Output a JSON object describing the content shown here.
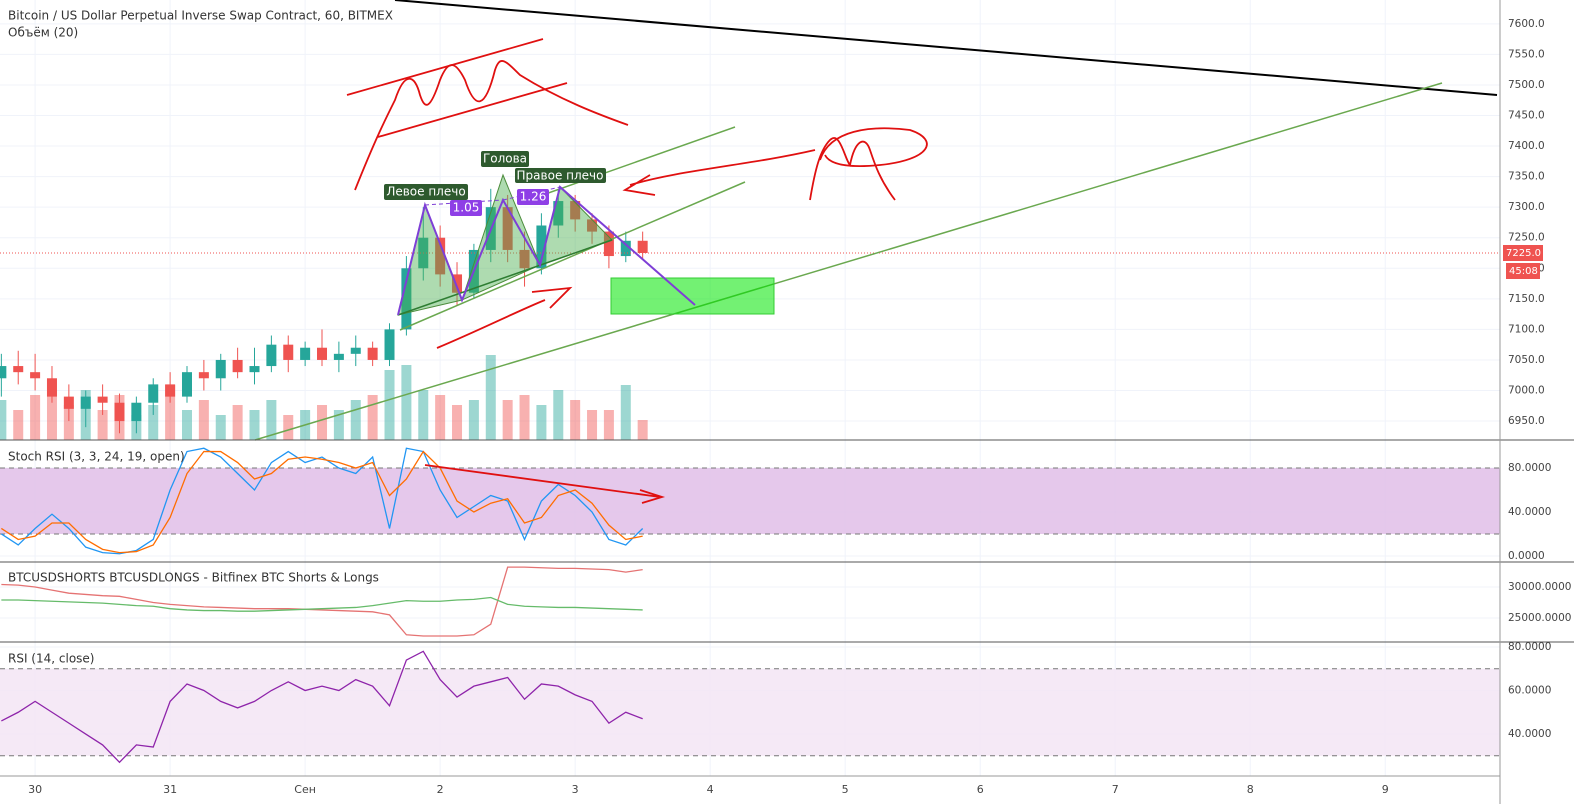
{
  "chart_data": [
    {
      "type": "candlestick",
      "title": "Bitcoin / US Dollar Perpetual Inverse Swap Contract, 60, BITMEX",
      "volume_title": "Объём (20)",
      "x": [
        -0.25,
        -0.125,
        0,
        0.125,
        0.25,
        0.375,
        0.5,
        0.625,
        0.75,
        0.875,
        1,
        1.125,
        1.25,
        1.375,
        1.5,
        1.625,
        1.75,
        1.875,
        2,
        2.125,
        2.25,
        2.375,
        2.5,
        2.625,
        2.75,
        2.875,
        3,
        3.125,
        3.25,
        3.375,
        3.5,
        3.625,
        3.75,
        3.875,
        4,
        4.125,
        4.25,
        4.375,
        4.5
      ],
      "open": [
        7020,
        7040,
        7030,
        7020,
        6990,
        6970,
        6990,
        6980,
        6950,
        6980,
        7010,
        6990,
        7030,
        7020,
        7050,
        7030,
        7040,
        7075,
        7050,
        7070,
        7050,
        7060,
        7070,
        7050,
        7100,
        7200,
        7250,
        7190,
        7160,
        7230,
        7300,
        7230,
        7200,
        7270,
        7310,
        7280,
        7260,
        7220,
        7245
      ],
      "high": [
        7060,
        7065,
        7060,
        7040,
        7010,
        7000,
        7010,
        6995,
        6990,
        7020,
        7030,
        7040,
        7050,
        7060,
        7070,
        7070,
        7090,
        7090,
        7080,
        7100,
        7080,
        7090,
        7080,
        7110,
        7220,
        7300,
        7270,
        7210,
        7240,
        7330,
        7320,
        7260,
        7290,
        7330,
        7320,
        7290,
        7270,
        7260,
        7260
      ],
      "low": [
        6990,
        7010,
        7000,
        6980,
        6950,
        6940,
        6960,
        6930,
        6930,
        6960,
        6980,
        6980,
        7000,
        7000,
        7020,
        7010,
        7030,
        7030,
        7040,
        7040,
        7030,
        7040,
        7040,
        7040,
        7090,
        7180,
        7170,
        7140,
        7150,
        7210,
        7210,
        7170,
        7190,
        7250,
        7260,
        7240,
        7200,
        7210,
        7215
      ],
      "close": [
        7040,
        7030,
        7020,
        6990,
        6970,
        6990,
        6980,
        6950,
        6980,
        7010,
        6990,
        7030,
        7020,
        7050,
        7030,
        7040,
        7075,
        7050,
        7070,
        7050,
        7060,
        7070,
        7050,
        7100,
        7200,
        7250,
        7190,
        7160,
        7230,
        7300,
        7230,
        7200,
        7270,
        7310,
        7280,
        7260,
        7220,
        7245,
        7225
      ],
      "volume": [
        40,
        30,
        45,
        60,
        35,
        50,
        30,
        45,
        25,
        35,
        55,
        30,
        40,
        25,
        35,
        30,
        40,
        25,
        30,
        35,
        30,
        40,
        45,
        70,
        75,
        50,
        45,
        35,
        40,
        85,
        40,
        45,
        35,
        50,
        40,
        30,
        30,
        55,
        20
      ],
      "up_color": "#26a69a",
      "down_color": "#ef5350",
      "xlim": [
        -0.26,
        10.85
      ],
      "xticks": [
        {
          "value": 0,
          "label": "30"
        },
        {
          "value": 1,
          "label": "31"
        },
        {
          "value": 2,
          "label": "Сен"
        },
        {
          "value": 3,
          "label": "2"
        },
        {
          "value": 4,
          "label": "3"
        },
        {
          "value": 5,
          "label": "4"
        },
        {
          "value": 6,
          "label": "5"
        },
        {
          "value": 7,
          "label": "6"
        },
        {
          "value": 8,
          "label": "7"
        },
        {
          "value": 9,
          "label": "8"
        },
        {
          "value": 10,
          "label": "9"
        }
      ],
      "ylim": [
        6919,
        7639
      ],
      "yticks": [
        {
          "value": 6950,
          "label": "6950.0"
        },
        {
          "value": 7000,
          "label": "7000.0"
        },
        {
          "value": 7050,
          "label": "7050.0"
        },
        {
          "value": 7100,
          "label": "7100.0"
        },
        {
          "value": 7150,
          "label": "7150.0"
        },
        {
          "value": 7200,
          "label": "7200.0"
        },
        {
          "value": 7250,
          "label": "7250.0"
        },
        {
          "value": 7300,
          "label": "7300.0"
        },
        {
          "value": 7350,
          "label": "7350.0"
        },
        {
          "value": 7400,
          "label": "7400.0"
        },
        {
          "value": 7450,
          "label": "7450.0"
        },
        {
          "value": 7500,
          "label": "7500.0"
        },
        {
          "value": 7550,
          "label": "7550.0"
        },
        {
          "value": 7600,
          "label": "7600.0"
        }
      ],
      "grid": true,
      "last_price": 7225,
      "last_price_label": "7225.0",
      "countdown": "45:08",
      "annotations": [
        "Левое плечо",
        "Голова",
        "Правое плечо",
        "1.05",
        "1.26"
      ]
    },
    {
      "type": "line",
      "title": "Stoch RSI (3, 3, 24, 19, open)",
      "series": [
        {
          "color": "#2196f3",
          "values": [
            20,
            10,
            25,
            38,
            25,
            8,
            3,
            2,
            5,
            15,
            60,
            95,
            98,
            90,
            75,
            60,
            85,
            95,
            85,
            90,
            80,
            75,
            90,
            25,
            98,
            95,
            60,
            35,
            45,
            55,
            50,
            15,
            50,
            65,
            55,
            40,
            15,
            10,
            25
          ]
        },
        {
          "color": "#ff6d00",
          "values": [
            25,
            15,
            18,
            30,
            30,
            15,
            6,
            3,
            4,
            10,
            35,
            75,
            95,
            95,
            85,
            70,
            75,
            88,
            90,
            88,
            85,
            80,
            85,
            55,
            70,
            95,
            80,
            50,
            40,
            48,
            52,
            30,
            35,
            55,
            60,
            48,
            28,
            15,
            18
          ]
        }
      ],
      "ylim": [
        -5.5,
        105.5
      ],
      "yticks": [
        {
          "value": 0,
          "label": "0.0000"
        },
        {
          "value": 40,
          "label": "40.0000"
        },
        {
          "value": 80,
          "label": "80.0000"
        }
      ],
      "band": [
        20,
        80
      ],
      "band_color": "#e1bee7"
    },
    {
      "type": "line",
      "title": "BTCUSDSHORTS BTCUSDLONGS - Bitfinex BTC Shorts & Longs",
      "series": [
        {
          "color": "#e57373",
          "values": [
            30400,
            30300,
            30000,
            29500,
            29000,
            28800,
            28600,
            28500,
            28000,
            27500,
            27200,
            27000,
            26800,
            26700,
            26600,
            26500,
            26500,
            26500,
            26400,
            26300,
            26200,
            26100,
            26000,
            25500,
            22300,
            22100,
            22100,
            22100,
            22300,
            24000,
            33200,
            33200,
            33100,
            33000,
            33000,
            32900,
            32800,
            32400,
            32800
          ]
        },
        {
          "color": "#66bb6a",
          "values": [
            27900,
            27900,
            27800,
            27700,
            27600,
            27500,
            27400,
            27200,
            27000,
            26900,
            26500,
            26300,
            26200,
            26200,
            26100,
            26100,
            26200,
            26300,
            26400,
            26500,
            26600,
            26700,
            27000,
            27400,
            27800,
            27700,
            27700,
            27900,
            28000,
            28300,
            27200,
            26900,
            26800,
            26700,
            26700,
            26600,
            26500,
            26400,
            26300
          ]
        }
      ],
      "ylim": [
        21129,
        34032
      ],
      "yticks": [
        {
          "value": 25000,
          "label": "25000.0000"
        },
        {
          "value": 30000,
          "label": "30000.0000"
        }
      ]
    },
    {
      "type": "line",
      "title": "RSI (14, close)",
      "series": [
        {
          "color": "#8e24aa",
          "values": [
            46,
            50,
            55,
            50,
            45,
            40,
            35,
            27,
            35,
            34,
            55,
            63,
            60,
            55,
            52,
            55,
            60,
            64,
            60,
            62,
            60,
            65,
            62,
            53,
            74,
            78,
            65,
            57,
            62,
            64,
            66,
            56,
            63,
            62,
            58,
            55,
            45,
            50,
            47
          ]
        }
      ],
      "ylim": [
        20.7,
        82.3
      ],
      "yticks": [
        {
          "value": 40,
          "label": "40.0000"
        },
        {
          "value": 60,
          "label": "60.0000"
        },
        {
          "value": 80,
          "label": "80.0000"
        }
      ],
      "band": [
        30,
        70
      ],
      "band_color": "#f3e5f5"
    }
  ]
}
